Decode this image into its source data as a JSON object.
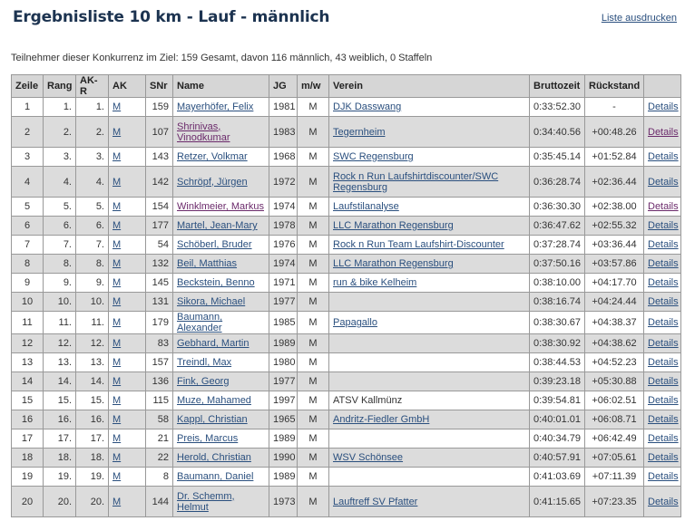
{
  "title": "Ergebnisliste 10 km - Lauf - männlich",
  "print_link": "Liste ausdrucken",
  "info": "Teilnehmer dieser Konkurrenz im Ziel: 159 Gesamt, davon 116 männlich, 43 weiblich, 0 Staffeln",
  "colors": {
    "link": "#2a4f7e",
    "visited_link": "#6b2a6b",
    "row_alt": "#dcdcdc",
    "header": "#d6d6d6",
    "title": "#1c3350"
  },
  "columns": [
    "Zeile",
    "Rang",
    "AK-R",
    "AK",
    "SNr",
    "Name",
    "JG",
    "m/w",
    "Verein",
    "Bruttozeit",
    "Rückstand",
    ""
  ],
  "details_label": "Details",
  "rows": [
    {
      "zeile": "1",
      "rang": "1.",
      "akr": "1.",
      "ak": "M",
      "snr": "159",
      "name": "Mayerhöfer, Felix",
      "jg": "1981",
      "mw": "M",
      "verein": "DJK Dasswang",
      "verein_link": true,
      "zeit": "0:33:52.30",
      "rueck": "-"
    },
    {
      "zeile": "2",
      "rang": "2.",
      "akr": "2.",
      "ak": "M",
      "snr": "107",
      "name": "Shrinivas, Vinodkumar",
      "jg": "1983",
      "mw": "M",
      "verein": "Tegernheim",
      "verein_link": true,
      "zeit": "0:34:40.56",
      "rueck": "+00:48.26",
      "visited": true,
      "tall": true
    },
    {
      "zeile": "3",
      "rang": "3.",
      "akr": "3.",
      "ak": "M",
      "snr": "143",
      "name": "Retzer, Volkmar",
      "jg": "1968",
      "mw": "M",
      "verein": "SWC Regensburg",
      "verein_link": true,
      "zeit": "0:35:45.14",
      "rueck": "+01:52.84"
    },
    {
      "zeile": "4",
      "rang": "4.",
      "akr": "4.",
      "ak": "M",
      "snr": "142",
      "name": "Schröpf, Jürgen",
      "jg": "1972",
      "mw": "M",
      "verein": "Rock n Run Laufshirtdiscounter/SWC Regensburg",
      "verein_link": true,
      "zeit": "0:36:28.74",
      "rueck": "+02:36.44",
      "tall": true
    },
    {
      "zeile": "5",
      "rang": "5.",
      "akr": "5.",
      "ak": "M",
      "snr": "154",
      "name": "Winklmeier, Markus",
      "jg": "1974",
      "mw": "M",
      "verein": "Laufstilanalyse",
      "verein_link": true,
      "zeit": "0:36:30.30",
      "rueck": "+02:38.00",
      "visited": true
    },
    {
      "zeile": "6",
      "rang": "6.",
      "akr": "6.",
      "ak": "M",
      "snr": "177",
      "name": "Martel, Jean-Mary",
      "jg": "1978",
      "mw": "M",
      "verein": "LLC Marathon Regensburg",
      "verein_link": true,
      "zeit": "0:36:47.62",
      "rueck": "+02:55.32"
    },
    {
      "zeile": "7",
      "rang": "7.",
      "akr": "7.",
      "ak": "M",
      "snr": "54",
      "name": "Schöberl, Bruder",
      "jg": "1976",
      "mw": "M",
      "verein": "Rock n Run Team Laufshirt-Discounter",
      "verein_link": true,
      "zeit": "0:37:28.74",
      "rueck": "+03:36.44"
    },
    {
      "zeile": "8",
      "rang": "8.",
      "akr": "8.",
      "ak": "M",
      "snr": "132",
      "name": "Beil, Matthias",
      "jg": "1974",
      "mw": "M",
      "verein": "LLC Marathon Regensburg",
      "verein_link": true,
      "zeit": "0:37:50.16",
      "rueck": "+03:57.86"
    },
    {
      "zeile": "9",
      "rang": "9.",
      "akr": "9.",
      "ak": "M",
      "snr": "145",
      "name": "Beckstein, Benno",
      "jg": "1971",
      "mw": "M",
      "verein": "run & bike Kelheim",
      "verein_link": true,
      "zeit": "0:38:10.00",
      "rueck": "+04:17.70"
    },
    {
      "zeile": "10",
      "rang": "10.",
      "akr": "10.",
      "ak": "M",
      "snr": "131",
      "name": "Sikora, Michael",
      "jg": "1977",
      "mw": "M",
      "verein": "",
      "zeit": "0:38:16.74",
      "rueck": "+04:24.44"
    },
    {
      "zeile": "11",
      "rang": "11.",
      "akr": "11.",
      "ak": "M",
      "snr": "179",
      "name": "Baumann, Alexander",
      "jg": "1985",
      "mw": "M",
      "verein": "Papagallo",
      "verein_link": true,
      "zeit": "0:38:30.67",
      "rueck": "+04:38.37"
    },
    {
      "zeile": "12",
      "rang": "12.",
      "akr": "12.",
      "ak": "M",
      "snr": "83",
      "name": "Gebhard, Martin",
      "jg": "1989",
      "mw": "M",
      "verein": "",
      "zeit": "0:38:30.92",
      "rueck": "+04:38.62"
    },
    {
      "zeile": "13",
      "rang": "13.",
      "akr": "13.",
      "ak": "M",
      "snr": "157",
      "name": "Treindl, Max",
      "jg": "1980",
      "mw": "M",
      "verein": "",
      "zeit": "0:38:44.53",
      "rueck": "+04:52.23"
    },
    {
      "zeile": "14",
      "rang": "14.",
      "akr": "14.",
      "ak": "M",
      "snr": "136",
      "name": "Fink, Georg",
      "jg": "1977",
      "mw": "M",
      "verein": "",
      "zeit": "0:39:23.18",
      "rueck": "+05:30.88"
    },
    {
      "zeile": "15",
      "rang": "15.",
      "akr": "15.",
      "ak": "M",
      "snr": "115",
      "name": "Muze, Mahamed",
      "jg": "1997",
      "mw": "M",
      "verein": "ATSV Kallmünz",
      "verein_link": false,
      "zeit": "0:39:54.81",
      "rueck": "+06:02.51"
    },
    {
      "zeile": "16",
      "rang": "16.",
      "akr": "16.",
      "ak": "M",
      "snr": "58",
      "name": "Kappl, Christian",
      "jg": "1965",
      "mw": "M",
      "verein": "Andritz-Fiedler GmbH",
      "verein_link": true,
      "zeit": "0:40:01.01",
      "rueck": "+06:08.71"
    },
    {
      "zeile": "17",
      "rang": "17.",
      "akr": "17.",
      "ak": "M",
      "snr": "21",
      "name": "Preis, Marcus",
      "jg": "1989",
      "mw": "M",
      "verein": "",
      "zeit": "0:40:34.79",
      "rueck": "+06:42.49"
    },
    {
      "zeile": "18",
      "rang": "18.",
      "akr": "18.",
      "ak": "M",
      "snr": "22",
      "name": "Herold, Christian",
      "jg": "1990",
      "mw": "M",
      "verein": "WSV Schönsee",
      "verein_link": true,
      "zeit": "0:40:57.91",
      "rueck": "+07:05.61"
    },
    {
      "zeile": "19",
      "rang": "19.",
      "akr": "19.",
      "ak": "M",
      "snr": "8",
      "name": "Baumann, Daniel",
      "jg": "1989",
      "mw": "M",
      "verein": "",
      "zeit": "0:41:03.69",
      "rueck": "+07:11.39"
    },
    {
      "zeile": "20",
      "rang": "20.",
      "akr": "20.",
      "ak": "M",
      "snr": "144",
      "name": "Dr. Schemm, Helmut",
      "jg": "1973",
      "mw": "M",
      "verein": "Lauftreff SV Pfatter",
      "verein_link": true,
      "zeit": "0:41:15.65",
      "rueck": "+07:23.35",
      "tall": true
    }
  ]
}
